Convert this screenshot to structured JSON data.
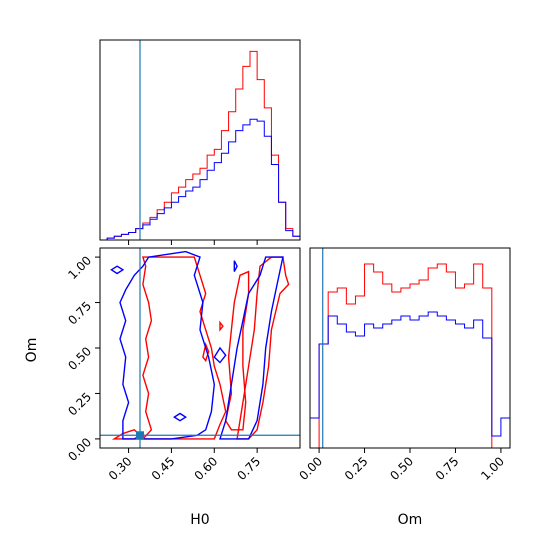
{
  "chart_data": {
    "type": "corner",
    "parameters": [
      "H0",
      "Om"
    ],
    "colors": {
      "red": "#ff0000",
      "blue": "#0000ff",
      "truth": "#1f77b4"
    },
    "truth": {
      "H0": 0.34,
      "Om": 0.02
    },
    "panels": [
      {
        "id": "hist-H0",
        "type": "histogram",
        "xlim": [
          0.2,
          0.9
        ],
        "bin_edges": [
          0.2,
          0.225,
          0.25,
          0.275,
          0.3,
          0.325,
          0.35,
          0.375,
          0.4,
          0.425,
          0.45,
          0.475,
          0.5,
          0.525,
          0.55,
          0.575,
          0.6,
          0.625,
          0.65,
          0.675,
          0.7,
          0.725,
          0.75,
          0.775,
          0.8,
          0.825,
          0.85,
          0.875,
          0.9
        ],
        "series": [
          {
            "name": "",
            "color": "#ff0000",
            "counts": [
              0,
              0.01,
              0.02,
              0.03,
              0.04,
              0.06,
              0.09,
              0.12,
              0.16,
              0.2,
              0.25,
              0.28,
              0.32,
              0.35,
              0.38,
              0.45,
              0.48,
              0.58,
              0.68,
              0.8,
              0.92,
              1.0,
              0.85,
              0.7,
              0.45,
              0.2,
              0.06,
              0.02
            ]
          },
          {
            "name": "",
            "color": "#0000ff",
            "counts": [
              0,
              0.01,
              0.02,
              0.03,
              0.04,
              0.06,
              0.08,
              0.11,
              0.14,
              0.17,
              0.2,
              0.23,
              0.26,
              0.28,
              0.32,
              0.37,
              0.41,
              0.46,
              0.52,
              0.58,
              0.61,
              0.64,
              0.63,
              0.55,
              0.4,
              0.2,
              0.05,
              0.02
            ]
          }
        ]
      },
      {
        "id": "hist-Om",
        "type": "histogram",
        "xlim": [
          -0.05,
          1.05
        ],
        "xticks": [
          "0.00",
          "0.25",
          "0.50",
          "0.75",
          "1.00"
        ],
        "xtick_values": [
          0,
          0.25,
          0.5,
          0.75,
          1.0
        ],
        "xlabel": "Om",
        "bin_edges": [
          -0.05,
          0.0,
          0.05,
          0.1,
          0.15,
          0.2,
          0.25,
          0.3,
          0.35,
          0.4,
          0.45,
          0.5,
          0.55,
          0.6,
          0.65,
          0.7,
          0.75,
          0.8,
          0.85,
          0.9,
          0.95,
          1.0,
          1.05
        ],
        "series": [
          {
            "name": "",
            "color": "#ff0000",
            "counts": [
              0,
              0.52,
              0.78,
              0.8,
              0.72,
              0.76,
              0.92,
              0.88,
              0.82,
              0.78,
              0.8,
              0.82,
              0.84,
              0.9,
              0.92,
              0.88,
              0.8,
              0.82,
              0.92,
              0.8,
              0.0,
              0.0
            ]
          },
          {
            "name": "",
            "color": "#0000ff",
            "counts": [
              0.15,
              0.52,
              0.66,
              0.62,
              0.58,
              0.56,
              0.62,
              0.6,
              0.62,
              0.64,
              0.66,
              0.64,
              0.66,
              0.68,
              0.66,
              0.64,
              0.62,
              0.6,
              0.64,
              0.55,
              0.06,
              0.15
            ]
          }
        ]
      },
      {
        "id": "contour-H0-Om",
        "type": "contour",
        "xlim": [
          0.2,
          0.9
        ],
        "ylim": [
          -0.05,
          1.05
        ],
        "xticks": [
          "0.30",
          "0.45",
          "0.60",
          "0.75"
        ],
        "xtick_values": [
          0.3,
          0.45,
          0.6,
          0.75
        ],
        "yticks": [
          "0.00",
          "0.25",
          "0.50",
          "0.75",
          "1.00"
        ],
        "ytick_values": [
          0,
          0.25,
          0.5,
          0.75,
          1.0
        ],
        "xlabel": "H0",
        "ylabel": "Om",
        "series": [
          {
            "name": "",
            "color": "#ff0000",
            "contours": [
              [
                [
                  0.35,
                  0.0
                ],
                [
                  0.38,
                  0.05
                ],
                [
                  0.36,
                  0.15
                ],
                [
                  0.37,
                  0.25
                ],
                [
                  0.35,
                  0.35
                ],
                [
                  0.37,
                  0.45
                ],
                [
                  0.36,
                  0.55
                ],
                [
                  0.38,
                  0.65
                ],
                [
                  0.37,
                  0.75
                ],
                [
                  0.35,
                  0.85
                ],
                [
                  0.36,
                  0.95
                ],
                [
                  0.35,
                  1.0
                ],
                [
                  0.53,
                  1.0
                ],
                [
                  0.55,
                  0.9
                ],
                [
                  0.57,
                  0.8
                ],
                [
                  0.55,
                  0.7
                ],
                [
                  0.57,
                  0.6
                ],
                [
                  0.59,
                  0.5
                ],
                [
                  0.6,
                  0.4
                ],
                [
                  0.62,
                  0.3
                ],
                [
                  0.64,
                  0.15
                ],
                [
                  0.62,
                  0.08
                ],
                [
                  0.6,
                  0.0
                ]
              ],
              [
                [
                  0.68,
                  0.0
                ],
                [
                  0.7,
                  0.2
                ],
                [
                  0.72,
                  0.4
                ],
                [
                  0.74,
                  0.6
                ],
                [
                  0.75,
                  0.8
                ],
                [
                  0.76,
                  0.95
                ],
                [
                  0.8,
                  1.0
                ],
                [
                  0.84,
                  1.0
                ],
                [
                  0.85,
                  0.9
                ],
                [
                  0.86,
                  0.85
                ],
                [
                  0.83,
                  0.8
                ],
                [
                  0.8,
                  0.6
                ],
                [
                  0.79,
                  0.4
                ],
                [
                  0.77,
                  0.2
                ],
                [
                  0.75,
                  0.05
                ],
                [
                  0.72,
                  0.0
                ]
              ],
              [
                [
                  0.25,
                  0.0
                ],
                [
                  0.28,
                  0.03
                ],
                [
                  0.32,
                  0.05
                ],
                [
                  0.34,
                  0.02
                ],
                [
                  0.32,
                  0.0
                ]
              ],
              [
                [
                  0.64,
                  0.1
                ],
                [
                  0.66,
                  0.25
                ],
                [
                  0.65,
                  0.45
                ],
                [
                  0.66,
                  0.6
                ],
                [
                  0.67,
                  0.75
                ],
                [
                  0.69,
                  0.9
                ],
                [
                  0.72,
                  0.92
                ],
                [
                  0.72,
                  0.8
                ],
                [
                  0.7,
                  0.6
                ],
                [
                  0.7,
                  0.4
                ],
                [
                  0.71,
                  0.2
                ],
                [
                  0.7,
                  0.05
                ],
                [
                  0.66,
                  0.05
                ]
              ],
              [
                [
                  0.56,
                  0.45
                ],
                [
                  0.57,
                  0.52
                ],
                [
                  0.58,
                  0.48
                ],
                [
                  0.57,
                  0.43
                ]
              ],
              [
                [
                  0.62,
                  0.6
                ],
                [
                  0.62,
                  0.64
                ],
                [
                  0.63,
                  0.62
                ]
              ]
            ]
          },
          {
            "name": "",
            "color": "#0000ff",
            "contours": [
              [
                [
                  0.28,
                  0.0
                ],
                [
                  0.28,
                  0.1
                ],
                [
                  0.3,
                  0.2
                ],
                [
                  0.28,
                  0.3
                ],
                [
                  0.29,
                  0.45
                ],
                [
                  0.27,
                  0.55
                ],
                [
                  0.29,
                  0.65
                ],
                [
                  0.27,
                  0.75
                ],
                [
                  0.29,
                  0.82
                ],
                [
                  0.32,
                  0.9
                ],
                [
                  0.35,
                  0.95
                ],
                [
                  0.37,
                  1.0
                ],
                [
                  0.5,
                  1.03
                ],
                [
                  0.55,
                  1.0
                ],
                [
                  0.53,
                  0.9
                ],
                [
                  0.56,
                  0.75
                ],
                [
                  0.55,
                  0.6
                ],
                [
                  0.58,
                  0.45
                ],
                [
                  0.6,
                  0.3
                ],
                [
                  0.59,
                  0.15
                ],
                [
                  0.57,
                  0.05
                ],
                [
                  0.54,
                  0.02
                ],
                [
                  0.45,
                  0.0
                ]
              ],
              [
                [
                  0.62,
                  0.0
                ],
                [
                  0.64,
                  0.1
                ],
                [
                  0.66,
                  0.3
                ],
                [
                  0.68,
                  0.5
                ],
                [
                  0.7,
                  0.65
                ],
                [
                  0.72,
                  0.8
                ],
                [
                  0.76,
                  0.9
                ],
                [
                  0.78,
                  1.0
                ],
                [
                  0.84,
                  1.0
                ],
                [
                  0.82,
                  0.85
                ],
                [
                  0.8,
                  0.7
                ],
                [
                  0.78,
                  0.5
                ],
                [
                  0.77,
                  0.3
                ],
                [
                  0.75,
                  0.1
                ],
                [
                  0.72,
                  0.0
                ]
              ],
              [
                [
                  0.24,
                  0.93
                ],
                [
                  0.26,
                  0.95
                ],
                [
                  0.28,
                  0.93
                ],
                [
                  0.26,
                  0.91
                ]
              ],
              [
                [
                  0.46,
                  0.12
                ],
                [
                  0.48,
                  0.14
                ],
                [
                  0.5,
                  0.12
                ],
                [
                  0.48,
                  0.1
                ]
              ],
              [
                [
                  0.6,
                  0.45
                ],
                [
                  0.62,
                  0.5
                ],
                [
                  0.64,
                  0.46
                ],
                [
                  0.62,
                  0.42
                ]
              ],
              [
                [
                  0.67,
                  0.92
                ],
                [
                  0.67,
                  0.98
                ],
                [
                  0.68,
                  0.95
                ]
              ]
            ]
          }
        ]
      }
    ]
  }
}
